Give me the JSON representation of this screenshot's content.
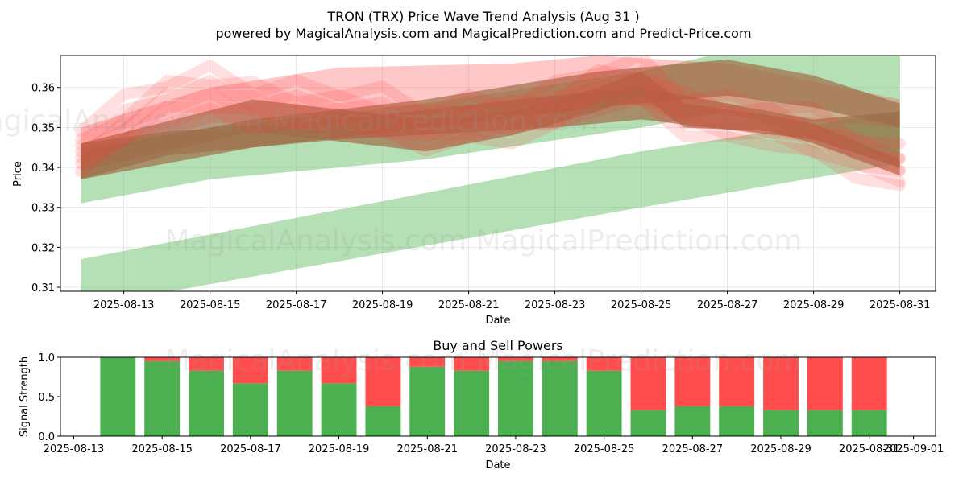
{
  "title_line1": "TRON (TRX) Price Wave Trend Analysis (Aug 31 )",
  "title_line2": "powered by MagicalAnalysis.com and MagicalPrediction.com and Predict-Price.com",
  "watermark": "MagicalAnalysis.com   MagicalPrediction.com",
  "colors": {
    "bull": "#4caf50",
    "bear": "#ff4d4d",
    "band_green": "#5cb85c",
    "band_red": "#ff3b3b",
    "band_brown": "#9e6e4a"
  },
  "chart_data": [
    {
      "type": "area",
      "title": "",
      "xlabel": "Date",
      "ylabel": "Price",
      "xlim": [
        "2025-08-12",
        "2025-08-31"
      ],
      "ylim": [
        0.309,
        0.368
      ],
      "x_ticks": [
        "2025-08-13",
        "2025-08-15",
        "2025-08-17",
        "2025-08-19",
        "2025-08-21",
        "2025-08-23",
        "2025-08-25",
        "2025-08-27",
        "2025-08-29",
        "2025-08-31"
      ],
      "y_ticks": [
        0.31,
        0.32,
        0.33,
        0.34,
        0.35,
        0.36
      ],
      "y_tick_labels": [
        "0.31",
        "0.32",
        "0.33",
        "0.34",
        "0.35",
        "0.36"
      ],
      "grid": true,
      "bands": [
        {
          "color": "green",
          "opacity": 0.45,
          "x": [
            "2025-08-12",
            "2025-08-25",
            "2025-08-31"
          ],
          "lower": [
            0.305,
            0.33,
            0.341
          ],
          "upper": [
            0.317,
            0.344,
            0.354
          ]
        },
        {
          "color": "green",
          "opacity": 0.45,
          "x": [
            "2025-08-12",
            "2025-08-15",
            "2025-08-20",
            "2025-08-25",
            "2025-08-27",
            "2025-08-31"
          ],
          "lower": [
            0.331,
            0.337,
            0.342,
            0.35,
            0.354,
            0.34
          ],
          "upper": [
            0.345,
            0.35,
            0.356,
            0.364,
            0.369,
            0.368
          ]
        },
        {
          "color": "red",
          "opacity": 0.28,
          "x": [
            "2025-08-12",
            "2025-08-15",
            "2025-08-18",
            "2025-08-22",
            "2025-08-24",
            "2025-08-27",
            "2025-08-31"
          ],
          "lower": [
            0.342,
            0.351,
            0.352,
            0.355,
            0.357,
            0.353,
            0.35
          ],
          "upper": [
            0.35,
            0.36,
            0.365,
            0.366,
            0.368,
            0.366,
            0.357
          ]
        },
        {
          "color": "brown",
          "opacity": 0.7,
          "x": [
            "2025-08-12",
            "2025-08-16",
            "2025-08-20",
            "2025-08-24",
            "2025-08-27",
            "2025-08-29",
            "2025-08-31"
          ],
          "lower": [
            0.337,
            0.345,
            0.35,
            0.355,
            0.358,
            0.355,
            0.35
          ],
          "upper": [
            0.344,
            0.352,
            0.357,
            0.364,
            0.367,
            0.363,
            0.356
          ]
        },
        {
          "color": "brown",
          "opacity": 0.7,
          "x": [
            "2025-08-12",
            "2025-08-16",
            "2025-08-20",
            "2025-08-22",
            "2025-08-24",
            "2025-08-25",
            "2025-08-26",
            "2025-08-28",
            "2025-08-29",
            "2025-08-31"
          ],
          "lower": [
            0.339,
            0.349,
            0.344,
            0.348,
            0.354,
            0.358,
            0.35,
            0.349,
            0.346,
            0.338
          ],
          "upper": [
            0.346,
            0.357,
            0.352,
            0.354,
            0.36,
            0.364,
            0.356,
            0.353,
            0.351,
            0.342
          ]
        },
        {
          "color": "brown",
          "opacity": 0.7,
          "x": [
            "2025-08-12",
            "2025-08-14",
            "2025-08-18",
            "2025-08-23",
            "2025-08-25",
            "2025-08-29",
            "2025-08-31"
          ],
          "lower": [
            0.337,
            0.343,
            0.347,
            0.35,
            0.352,
            0.347,
            0.34
          ],
          "upper": [
            0.346,
            0.349,
            0.352,
            0.358,
            0.36,
            0.352,
            0.354
          ]
        }
      ],
      "wave_lines": {
        "x": [
          "2025-08-12",
          "2025-08-13",
          "2025-08-14",
          "2025-08-15",
          "2025-08-16",
          "2025-08-17",
          "2025-08-18",
          "2025-08-19",
          "2025-08-20",
          "2025-08-21",
          "2025-08-22",
          "2025-08-23",
          "2025-08-24",
          "2025-08-25",
          "2025-08-26",
          "2025-08-27",
          "2025-08-28",
          "2025-08-29",
          "2025-08-30",
          "2025-08-31"
        ],
        "center": [
          0.344,
          0.351,
          0.357,
          0.359,
          0.356,
          0.355,
          0.354,
          0.353,
          0.35,
          0.352,
          0.352,
          0.355,
          0.36,
          0.361,
          0.354,
          0.352,
          0.351,
          0.348,
          0.343,
          0.34
        ]
      }
    },
    {
      "type": "bar",
      "title": "Buy and Sell Powers",
      "xlabel": "Date",
      "ylabel": "Signal Strength",
      "ylim": [
        0,
        1
      ],
      "xlim": [
        "2025-08-13",
        "2025-09-01"
      ],
      "x_ticks": [
        "2025-08-13",
        "2025-08-15",
        "2025-08-17",
        "2025-08-19",
        "2025-08-21",
        "2025-08-23",
        "2025-08-25",
        "2025-08-27",
        "2025-08-29",
        "2025-08-31",
        "2025-09-01"
      ],
      "y_ticks": [
        0,
        0.5,
        1
      ],
      "y_tick_labels": [
        "0.0",
        "0.5",
        "1.0"
      ],
      "categories": [
        "2025-08-14",
        "2025-08-15",
        "2025-08-16",
        "2025-08-17",
        "2025-08-18",
        "2025-08-19",
        "2025-08-20",
        "2025-08-21",
        "2025-08-22",
        "2025-08-23",
        "2025-08-24",
        "2025-08-25",
        "2025-08-26",
        "2025-08-27",
        "2025-08-28",
        "2025-08-29",
        "2025-08-30",
        "2025-08-31"
      ],
      "buy": [
        1.0,
        0.95,
        0.83,
        0.67,
        0.83,
        0.67,
        0.38,
        0.88,
        0.83,
        0.95,
        0.95,
        0.83,
        0.33,
        0.38,
        0.38,
        0.33,
        0.33,
        0.33
      ]
    }
  ]
}
